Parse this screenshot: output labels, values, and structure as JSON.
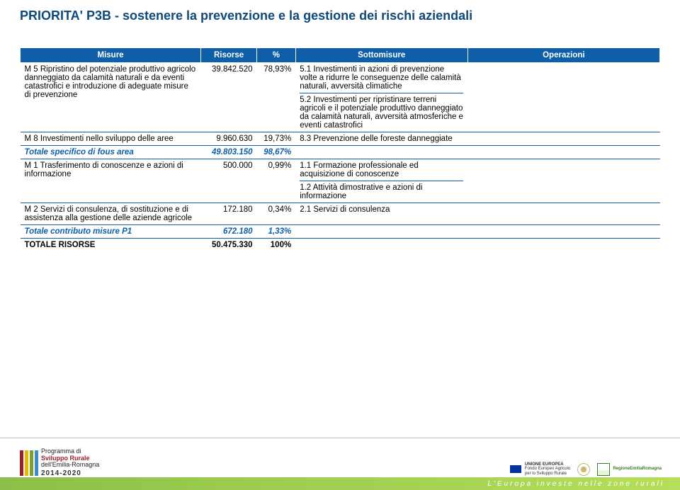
{
  "title": "PRIORITA' P3B - sostenere la prevenzione e la gestione dei rischi aziendali",
  "headers": {
    "misure": "Misure",
    "risorse": "Risorse",
    "pct": "%",
    "sotto": "Sottomisure",
    "oper": "Operazioni"
  },
  "rows": [
    {
      "misure": "M 5 Ripristino del potenziale produttivo agricolo danneggiato da calamità naturali e da eventi catastrofici e introduzione di adeguate misure di prevenzione",
      "risorse": "39.842.520",
      "pct": "78,93%",
      "sotto": "5.1 Investimenti in azioni di prevenzione volte a ridurre le conseguenze delle calamità naturali, avversità climatiche\n5.2 Investimenti per ripristinare terreni agricoli e il potenziale produttivo danneggiato da calamità naturali, avversità atmosferiche e eventi catastrofici",
      "oper": ""
    },
    {
      "misure": "M 8 Investimenti nello sviluppo delle aree",
      "risorse": "9.960.630",
      "pct": "19,73%",
      "sotto": "8.3 Prevenzione delle foreste danneggiate",
      "oper": ""
    },
    {
      "total": true,
      "misure": "Totale specifico di fous area",
      "risorse": "49.803.150",
      "pct": "98,67%",
      "sotto": "",
      "oper": ""
    },
    {
      "misure": "M 1 Trasferimento di conoscenze e azioni di informazione",
      "risorse": "500.000",
      "pct": "0,99%",
      "sotto": "1.1 Formazione professionale ed acquisizione di conoscenze\n1.2 Attività dimostrative e azioni di informazione",
      "oper": ""
    },
    {
      "misure": "M 2 Servizi di consulenza, di sostituzione e di assistenza alla gestione delle aziende agricole",
      "risorse": "172.180",
      "pct": "0,34%",
      "sotto": "2.1 Servizi di consulenza",
      "oper": ""
    },
    {
      "total": true,
      "misure": "Totale contributo misure P1",
      "risorse": "672.180",
      "pct": "1,33%",
      "sotto": "",
      "oper": ""
    },
    {
      "totalcaps": true,
      "misure": "TOTALE RISORSE",
      "risorse": "50.475.330",
      "pct": "100%",
      "sotto": "",
      "oper": ""
    }
  ],
  "footer": {
    "logo_lines": [
      "Programma di",
      "Sviluppo Rurale",
      "dell'Emilia-Romagna"
    ],
    "logo_years": "2014-2020",
    "eu_lines": [
      "UNIONE EUROPEA",
      "Fondo Europeo Agricolo",
      "per lo Sviluppo Rurale"
    ],
    "region_line": "RegioneEmiliaRomagna",
    "tagline": "L'Europa investe nelle zone rurali"
  }
}
